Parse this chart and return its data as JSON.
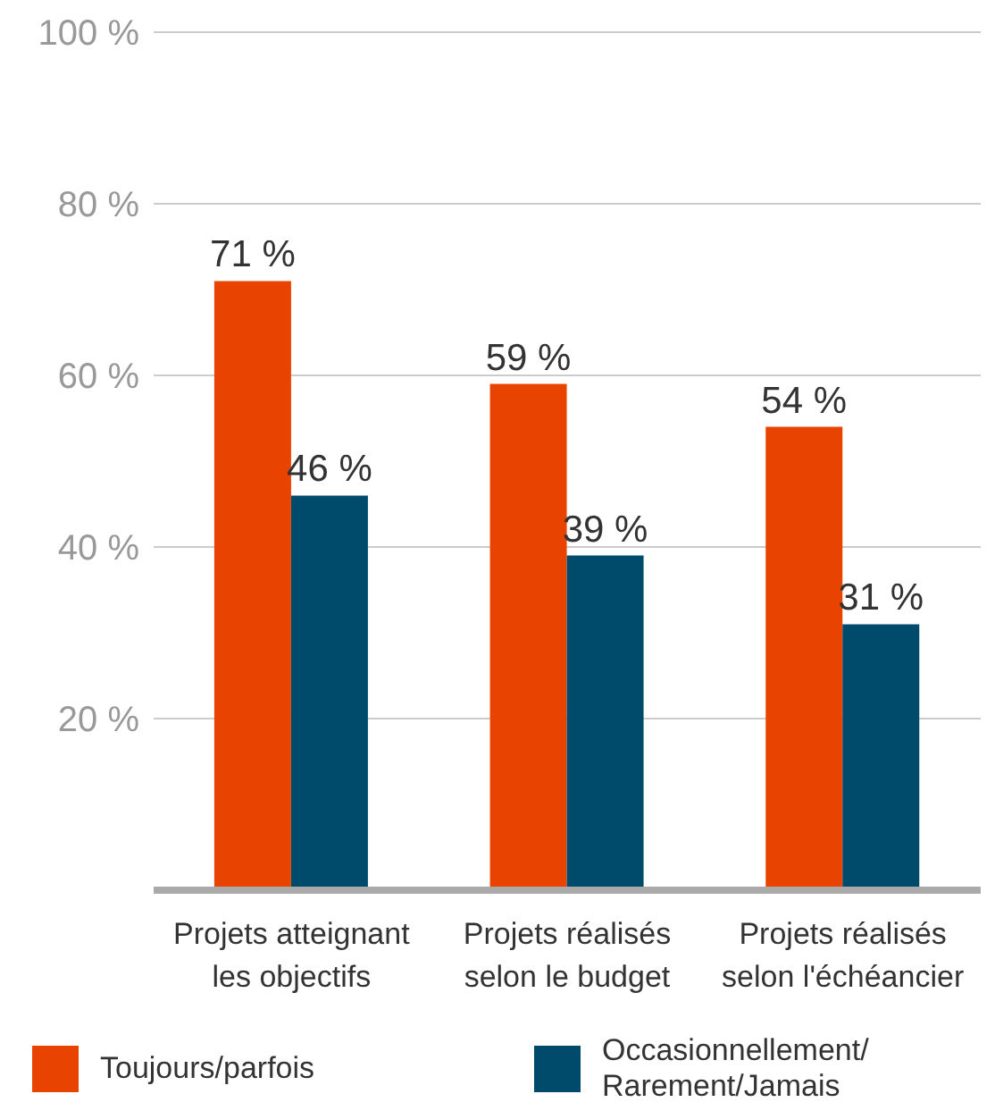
{
  "chart_data": {
    "type": "bar",
    "categories": [
      "Projets atteignant les objectifs",
      "Projets réalisés selon le budget",
      "Projets réalisés selon l'échéancier"
    ],
    "series": [
      {
        "name": "Toujours/parfois",
        "color": "#e84400",
        "values": [
          71,
          59,
          54
        ],
        "value_labels": [
          "71 %",
          "59 %",
          "54 %"
        ]
      },
      {
        "name": "Occasionnellement/Rarement/Jamais",
        "color": "#004b6b",
        "values": [
          46,
          39,
          31
        ],
        "value_labels": [
          "46 %",
          "39 %",
          "31 %"
        ]
      }
    ],
    "ylim": [
      0,
      100
    ],
    "yticks": [
      {
        "value": 20,
        "label": "20 %"
      },
      {
        "value": 40,
        "label": "40 %"
      },
      {
        "value": 60,
        "label": "60 %"
      },
      {
        "value": 80,
        "label": "80 %"
      },
      {
        "value": 100,
        "label": "100 %"
      }
    ],
    "grid": "y",
    "legend": "bottom"
  }
}
